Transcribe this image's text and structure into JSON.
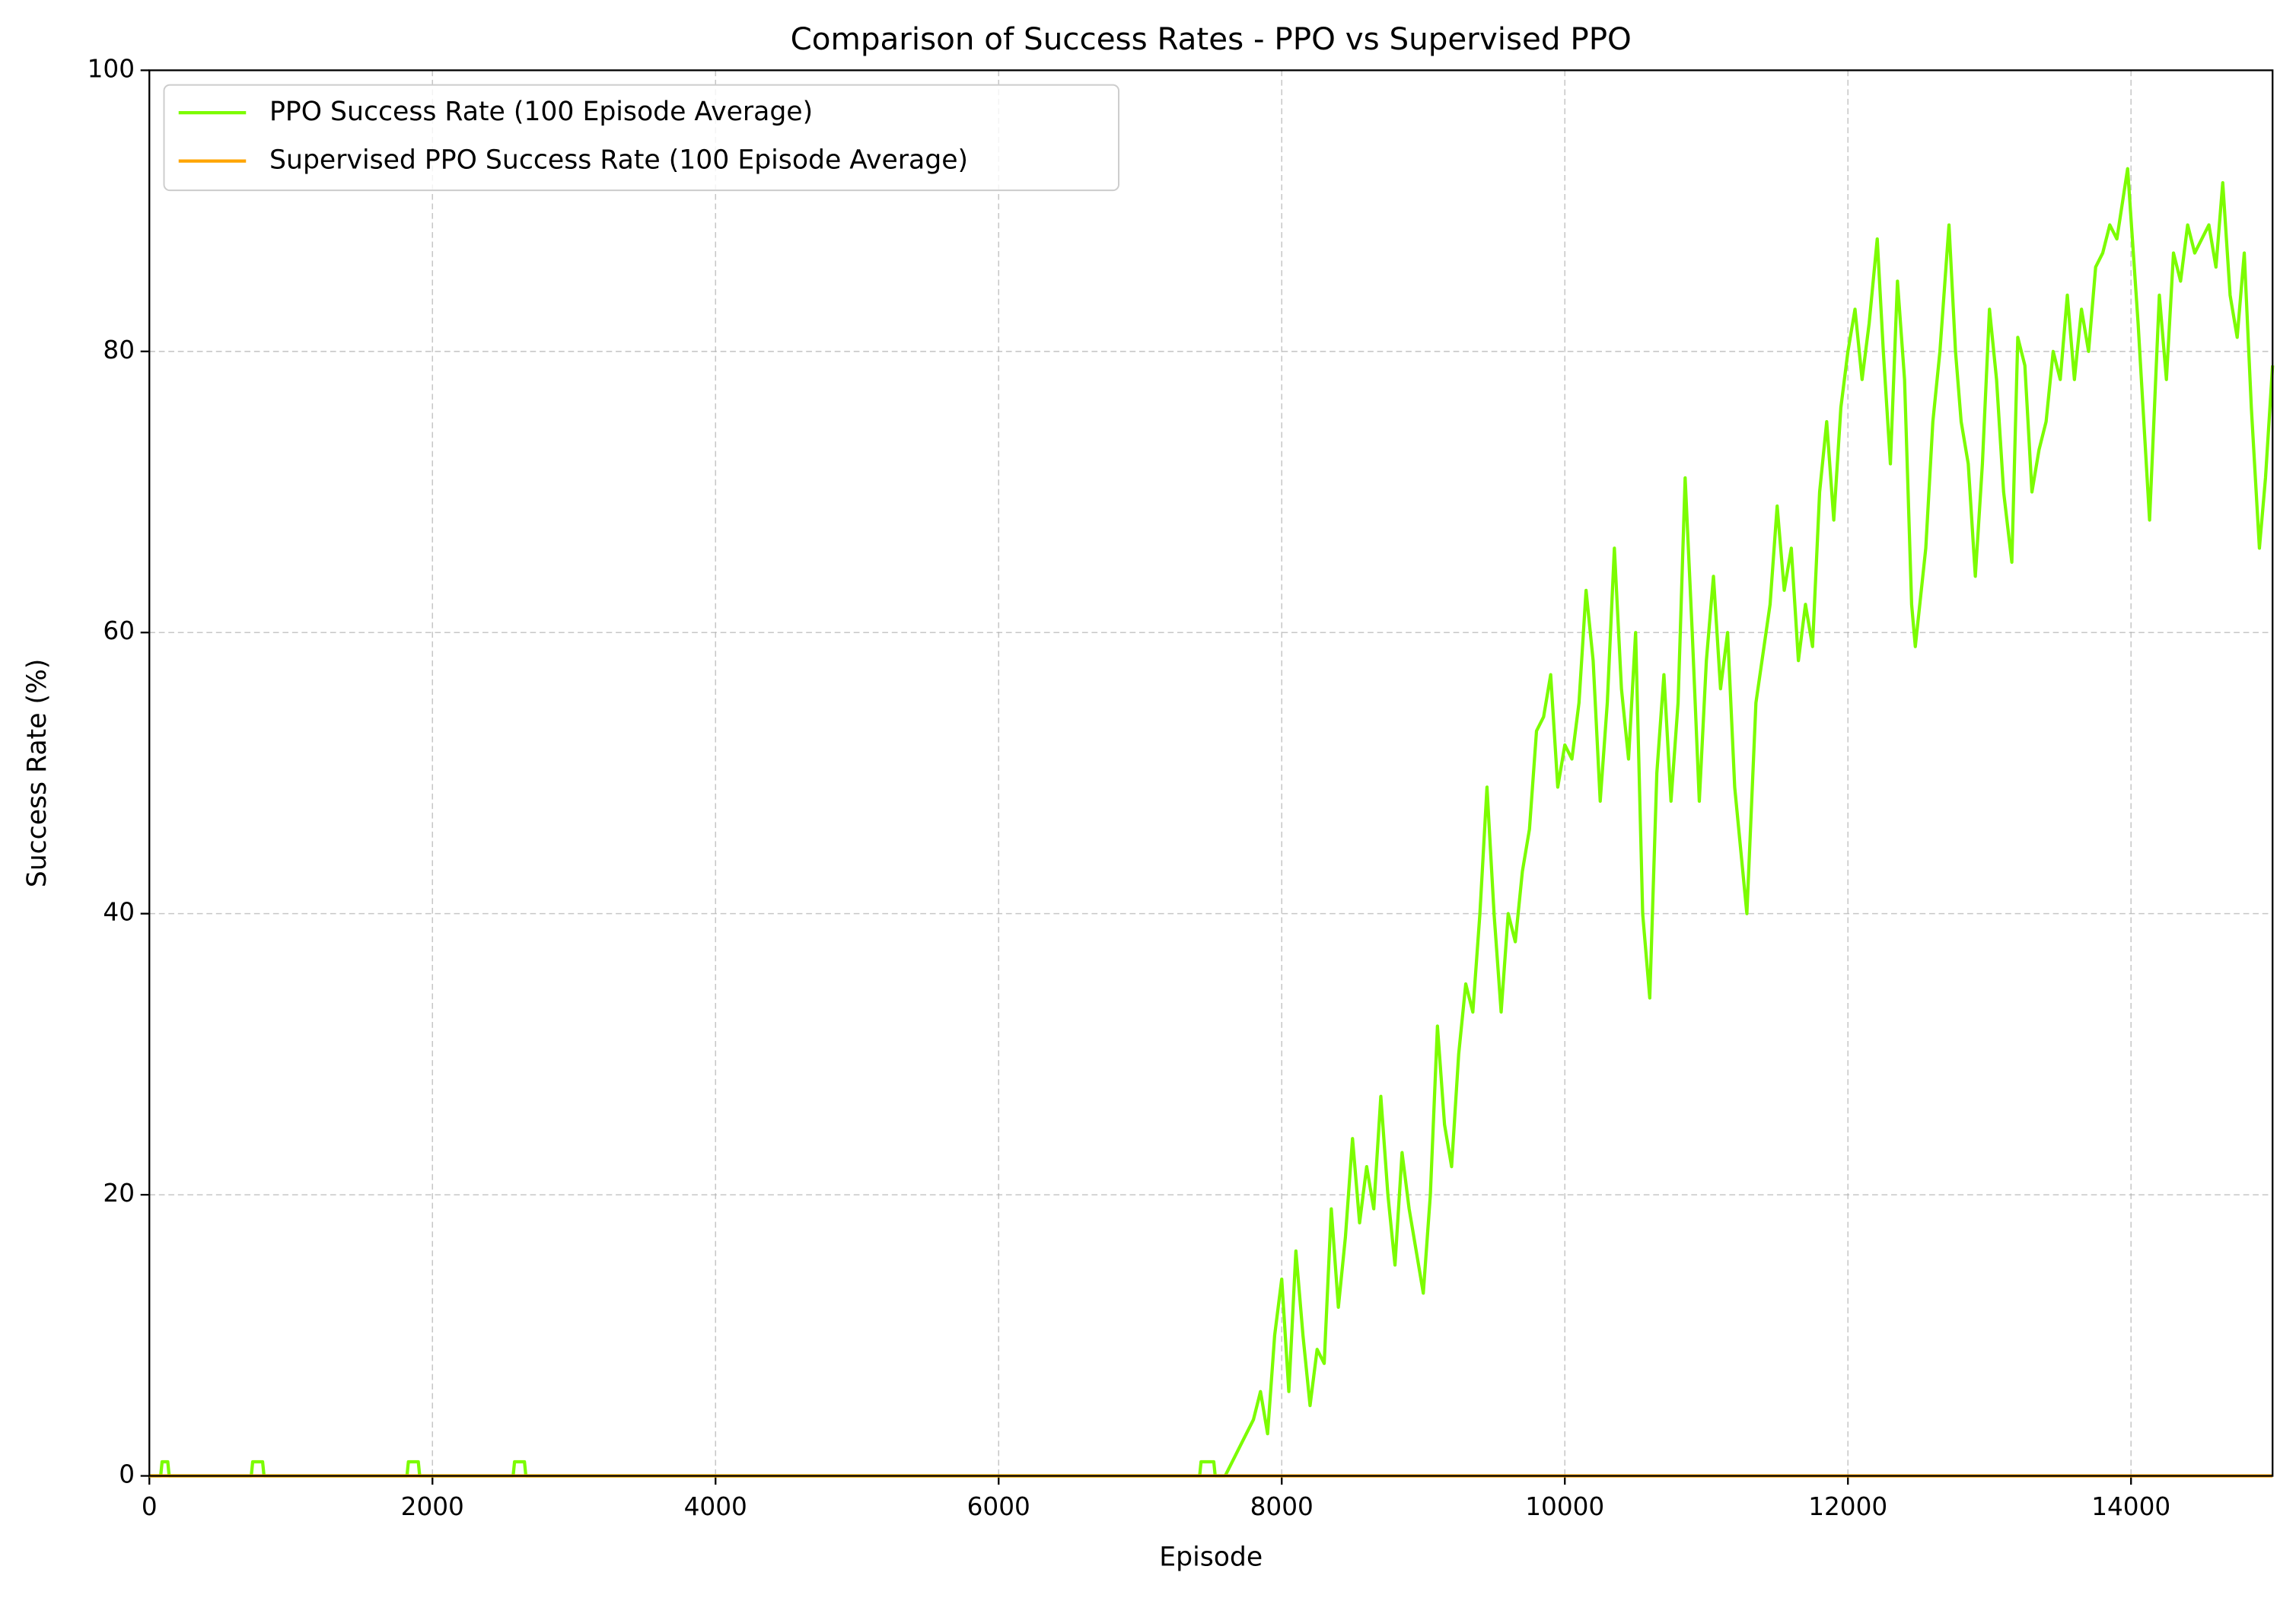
{
  "chart_data": {
    "type": "line",
    "title": "Comparison of Success Rates - PPO vs Supervised PPO",
    "x_label": "Episode",
    "y_label": "Success Rate (%)",
    "xlim": [
      0,
      15000
    ],
    "ylim": [
      0,
      100
    ],
    "xticks": [
      0,
      2000,
      4000,
      6000,
      8000,
      10000,
      12000,
      14000
    ],
    "yticks": [
      0,
      20,
      40,
      60,
      80,
      100
    ],
    "grid": true,
    "legend": "upper left",
    "series": [
      {
        "name": "PPO Success Rate (100 Episode Average)",
        "color": "#7cfc00",
        "x": [
          0,
          80,
          90,
          130,
          140,
          720,
          730,
          800,
          810,
          1820,
          1830,
          1900,
          1910,
          2570,
          2580,
          2650,
          2660,
          7420,
          7430,
          7520,
          7530,
          7600,
          7700,
          7800,
          7850,
          7900,
          7950,
          8000,
          8050,
          8100,
          8150,
          8200,
          8250,
          8300,
          8350,
          8400,
          8450,
          8500,
          8550,
          8600,
          8650,
          8700,
          8750,
          8800,
          8850,
          8900,
          8950,
          9000,
          9050,
          9100,
          9150,
          9200,
          9250,
          9300,
          9350,
          9400,
          9450,
          9500,
          9550,
          9600,
          9650,
          9700,
          9750,
          9800,
          9850,
          9900,
          9950,
          10000,
          10050,
          10100,
          10150,
          10200,
          10250,
          10300,
          10350,
          10400,
          10450,
          10500,
          10550,
          10600,
          10650,
          10700,
          10750,
          10800,
          10850,
          10900,
          10950,
          11000,
          11050,
          11100,
          11150,
          11200,
          11286,
          11350,
          11450,
          11500,
          11550,
          11600,
          11650,
          11700,
          11750,
          11800,
          11850,
          11900,
          11950,
          12000,
          12050,
          12100,
          12150,
          12207,
          12250,
          12300,
          12350,
          12400,
          12450,
          12476,
          12550,
          12600,
          12650,
          12714,
          12760,
          12800,
          12850,
          12900,
          12950,
          13000,
          13050,
          13100,
          13158,
          13200,
          13250,
          13300,
          13350,
          13400,
          13450,
          13500,
          13550,
          13600,
          13650,
          13700,
          13750,
          13800,
          13850,
          13900,
          13976,
          14050,
          14131,
          14200,
          14250,
          14300,
          14350,
          14400,
          14450,
          14500,
          14550,
          14600,
          14648,
          14700,
          14750,
          14800,
          14850,
          14907,
          14950,
          15000
        ],
        "values": [
          0,
          0,
          1,
          1,
          0,
          0,
          1,
          1,
          0,
          0,
          1,
          1,
          0,
          0,
          1,
          1,
          0,
          0,
          1,
          1,
          0,
          0,
          2,
          4,
          6,
          3,
          10,
          14,
          6,
          16,
          10,
          5,
          9,
          8,
          19,
          12,
          17,
          24,
          18,
          22,
          19,
          27,
          20,
          15,
          23,
          19,
          16,
          13,
          20,
          32,
          25,
          22,
          30,
          35,
          33,
          40,
          49,
          40,
          33,
          40,
          38,
          43,
          46,
          53,
          54,
          57,
          49,
          52,
          51,
          55,
          63,
          58,
          48,
          55,
          66,
          56,
          51,
          60,
          40,
          34,
          50,
          57,
          48,
          55,
          71,
          60,
          48,
          58,
          64,
          56,
          60,
          49,
          40,
          55,
          62,
          69,
          63,
          66,
          58,
          62,
          59,
          70,
          75,
          68,
          76,
          80,
          83,
          78,
          82,
          88,
          80,
          72,
          85,
          78,
          62,
          59,
          66,
          75,
          80,
          89,
          80,
          75,
          72,
          64,
          72,
          83,
          78,
          70,
          65,
          81,
          79,
          70,
          73,
          75,
          80,
          78,
          84,
          78,
          83,
          80,
          86,
          87,
          89,
          88,
          93,
          82,
          68,
          84,
          78,
          87,
          85,
          89,
          87,
          88,
          89,
          86,
          92,
          84,
          81,
          87,
          76,
          66,
          71,
          79
        ]
      },
      {
        "name": "Supervised PPO Success Rate (100 Episode Average)",
        "color": "#ffa500",
        "x": [
          0,
          15000
        ],
        "values": [
          0,
          0
        ]
      }
    ]
  }
}
